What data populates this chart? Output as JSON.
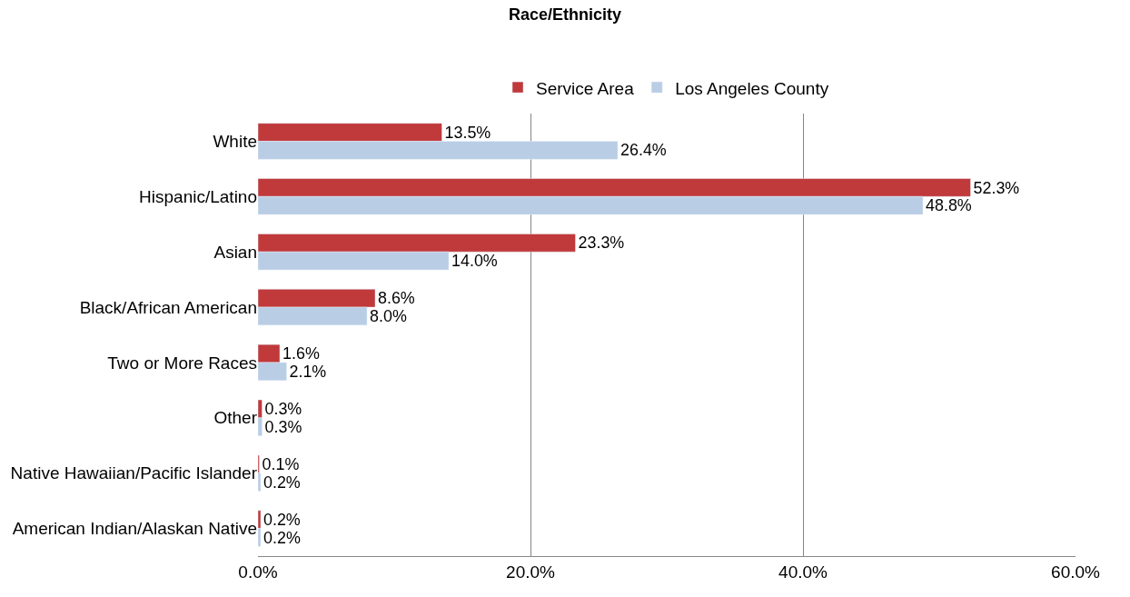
{
  "chart_data": {
    "type": "bar",
    "orientation": "horizontal",
    "title": "Race/Ethnicity",
    "categories": [
      "White",
      "Hispanic/Latino",
      "Asian",
      "Black/African American",
      "Two or More Races",
      "Other",
      "Native Hawaiian/Pacific Islander",
      "American Indian/Alaskan Native"
    ],
    "series": [
      {
        "name": "Service Area",
        "color": "#c0393b",
        "values": [
          13.5,
          52.3,
          23.3,
          8.6,
          1.6,
          0.3,
          0.1,
          0.2
        ],
        "value_labels": [
          "13.5%",
          "52.3%",
          "23.3%",
          "8.6%",
          "1.6%",
          "0.3%",
          "0.1%",
          "0.2%"
        ]
      },
      {
        "name": "Los Angeles County",
        "color": "#b9cde5",
        "values": [
          26.4,
          48.8,
          14.0,
          8.0,
          2.1,
          0.3,
          0.2,
          0.2
        ],
        "value_labels": [
          "26.4%",
          "48.8%",
          "14.0%",
          "8.0%",
          "2.1%",
          "0.3%",
          "0.2%",
          "0.2%"
        ]
      }
    ],
    "xlim": [
      0,
      60
    ],
    "xticks": [
      {
        "value": 0,
        "label": "0.0%"
      },
      {
        "value": 20,
        "label": "20.0%"
      },
      {
        "value": 40,
        "label": "40.0%"
      },
      {
        "value": 60,
        "label": "60.0%"
      }
    ],
    "grid": "x",
    "legend": "top"
  }
}
